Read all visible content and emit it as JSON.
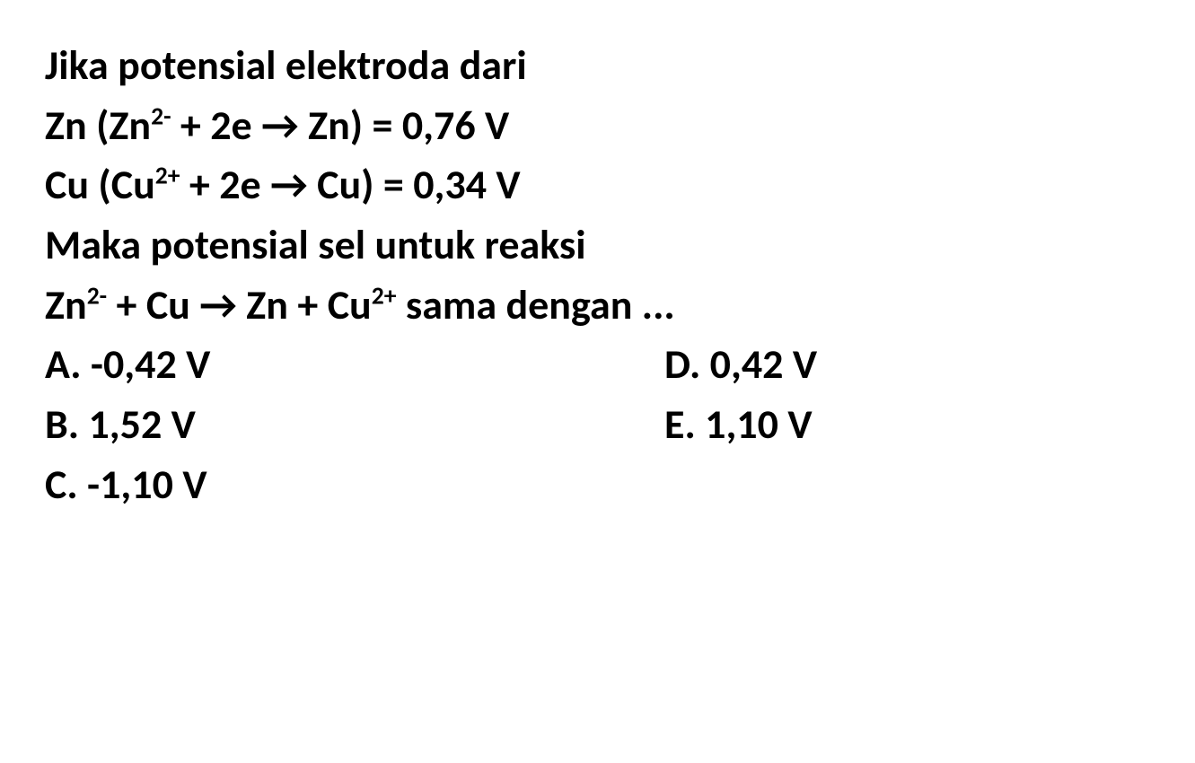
{
  "line1": "Jika potensial elektroda dari",
  "line2_pre": "Zn (Zn",
  "line2_sup": "2-",
  "line2_post": " + 2e → Zn) = 0,76 V",
  "line3_pre": "Cu (Cu",
  "line3_sup": "2+",
  "line3_post": " + 2e → Cu) = 0,34 V",
  "line4": "Maka potensial sel untuk reaksi",
  "line5_a": "Zn",
  "line5_sup1": "2-",
  "line5_b": " + Cu → Zn + Cu",
  "line5_sup2": "2+",
  "line5_c": " sama dengan ...",
  "optA": "A. -0,42 V",
  "optB": "B. 1,52 V",
  "optC": "C. -1,10 V",
  "optD": "D. 0,42 V",
  "optE": "E. 1,10 V"
}
